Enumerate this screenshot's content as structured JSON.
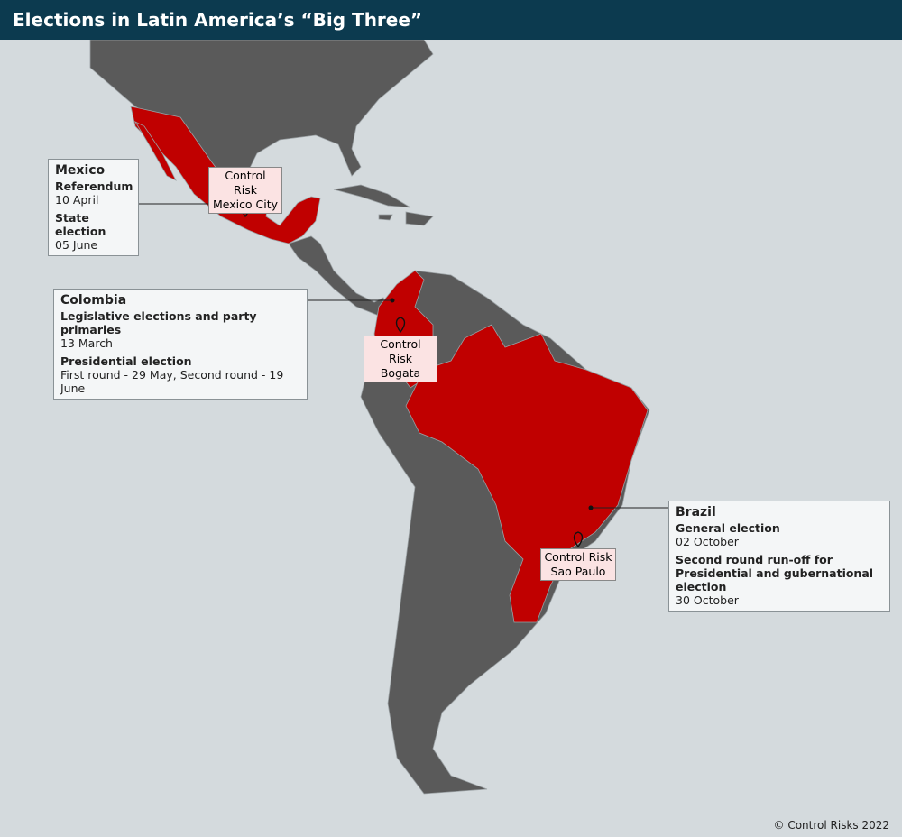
{
  "header": {
    "title": "Elections in Latin America’s “Big Three”"
  },
  "callouts": [
    {
      "country": "Mexico",
      "events": [
        {
          "name": "Referendum",
          "date": "10 April"
        },
        {
          "name": "State election",
          "date": "05 June"
        }
      ]
    },
    {
      "country": "Colombia",
      "events": [
        {
          "name": "Legislative elections and party primaries",
          "date": "13 March"
        },
        {
          "name": "Presidential election",
          "date": "First round - 29 May, Second round - 19 June"
        }
      ]
    },
    {
      "country": "Brazil",
      "events": [
        {
          "name": "General election",
          "date": "02 October"
        },
        {
          "name": "Second round run-off for Presidential and gubernational election",
          "date": "30 October"
        }
      ]
    }
  ],
  "offices": [
    {
      "label": "Control Risk",
      "city": "Mexico City"
    },
    {
      "label": "Control Risk",
      "city": "Bogata"
    },
    {
      "label": "Control Risk",
      "city": "Sao Paulo"
    }
  ],
  "footer": {
    "copyright": "© Control Risks 2022"
  }
}
